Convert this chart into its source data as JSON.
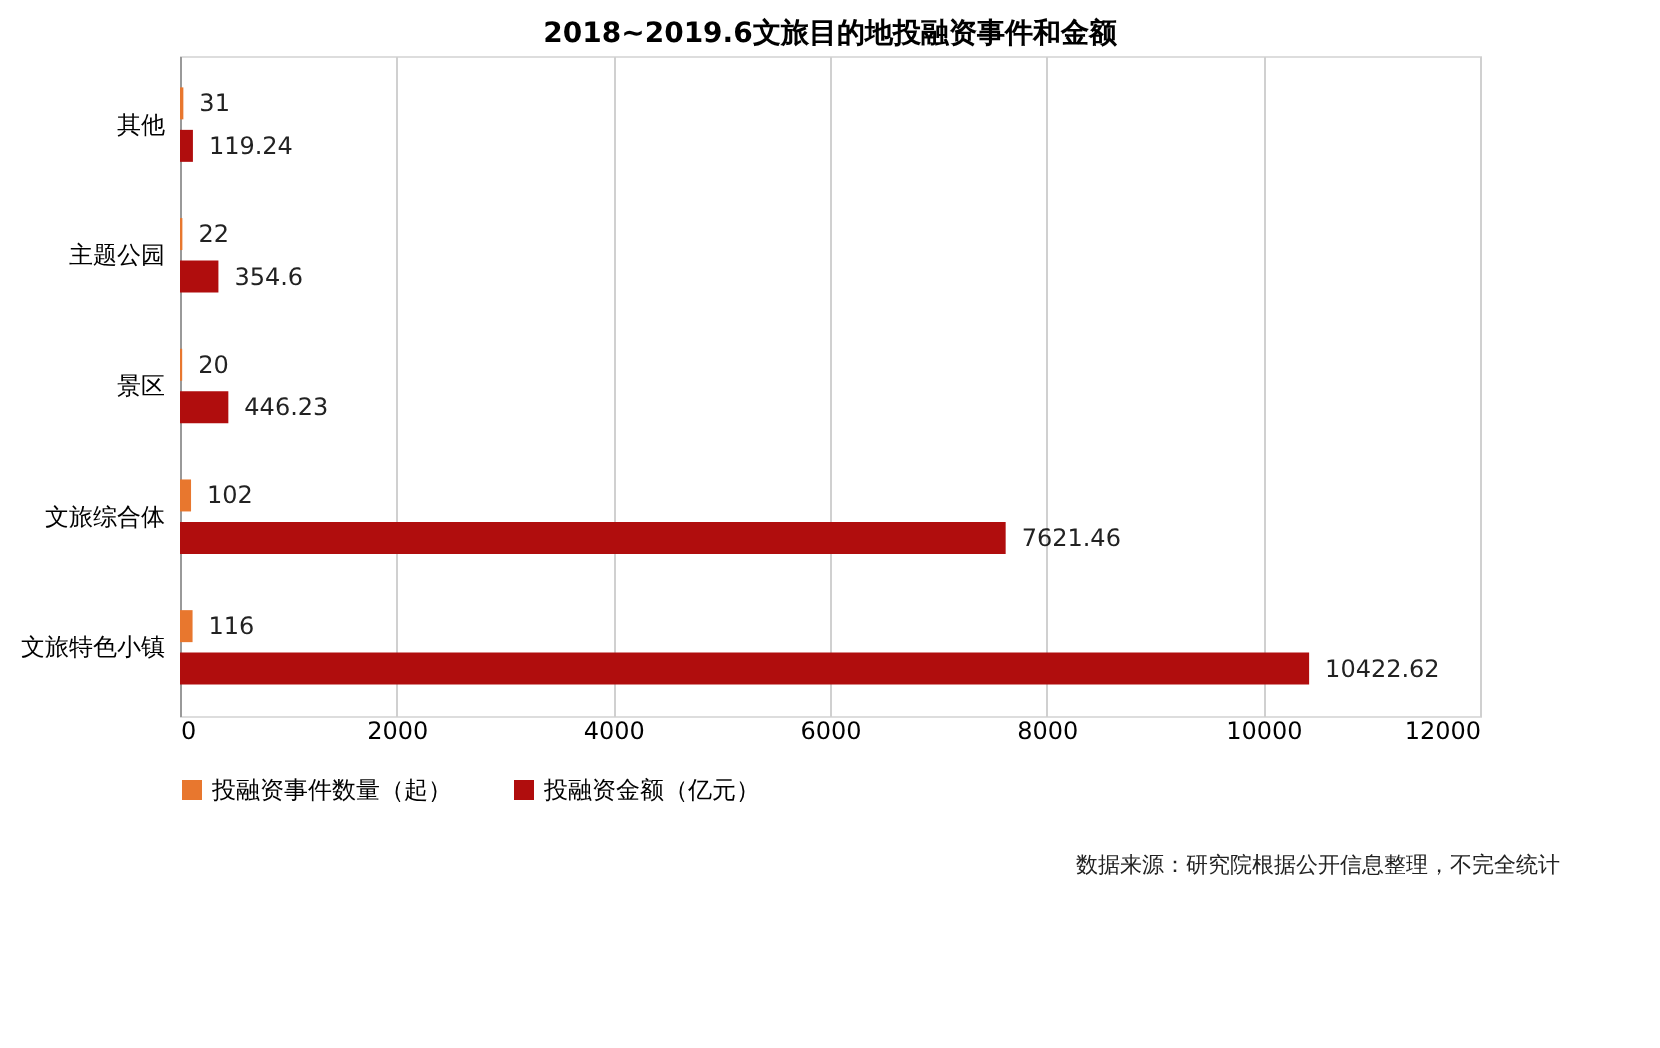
{
  "chart_data": {
    "type": "bar",
    "orientation": "horizontal",
    "title": "2018~2019.6文旅目的地投融资事件和金额",
    "categories": [
      "其他",
      "主题公园",
      "景区",
      "文旅综合体",
      "文旅特色小镇"
    ],
    "series": [
      {
        "name": "投融资事件数量（起）",
        "color": "#e8772e",
        "values": [
          31,
          22,
          20,
          102,
          116
        ]
      },
      {
        "name": "投融资金额（亿元）",
        "color": "#b00d0d",
        "values": [
          119.24,
          354.6,
          446.23,
          7621.46,
          10422.62
        ]
      }
    ],
    "xlim": [
      0,
      12000
    ],
    "xticks": [
      0,
      2000,
      4000,
      6000,
      8000,
      10000,
      12000
    ],
    "grid": "x",
    "legend": "bottom",
    "data_labels": true,
    "annotations": [
      "数据来源：研究院根据公开信息整理，不完全统计"
    ]
  }
}
